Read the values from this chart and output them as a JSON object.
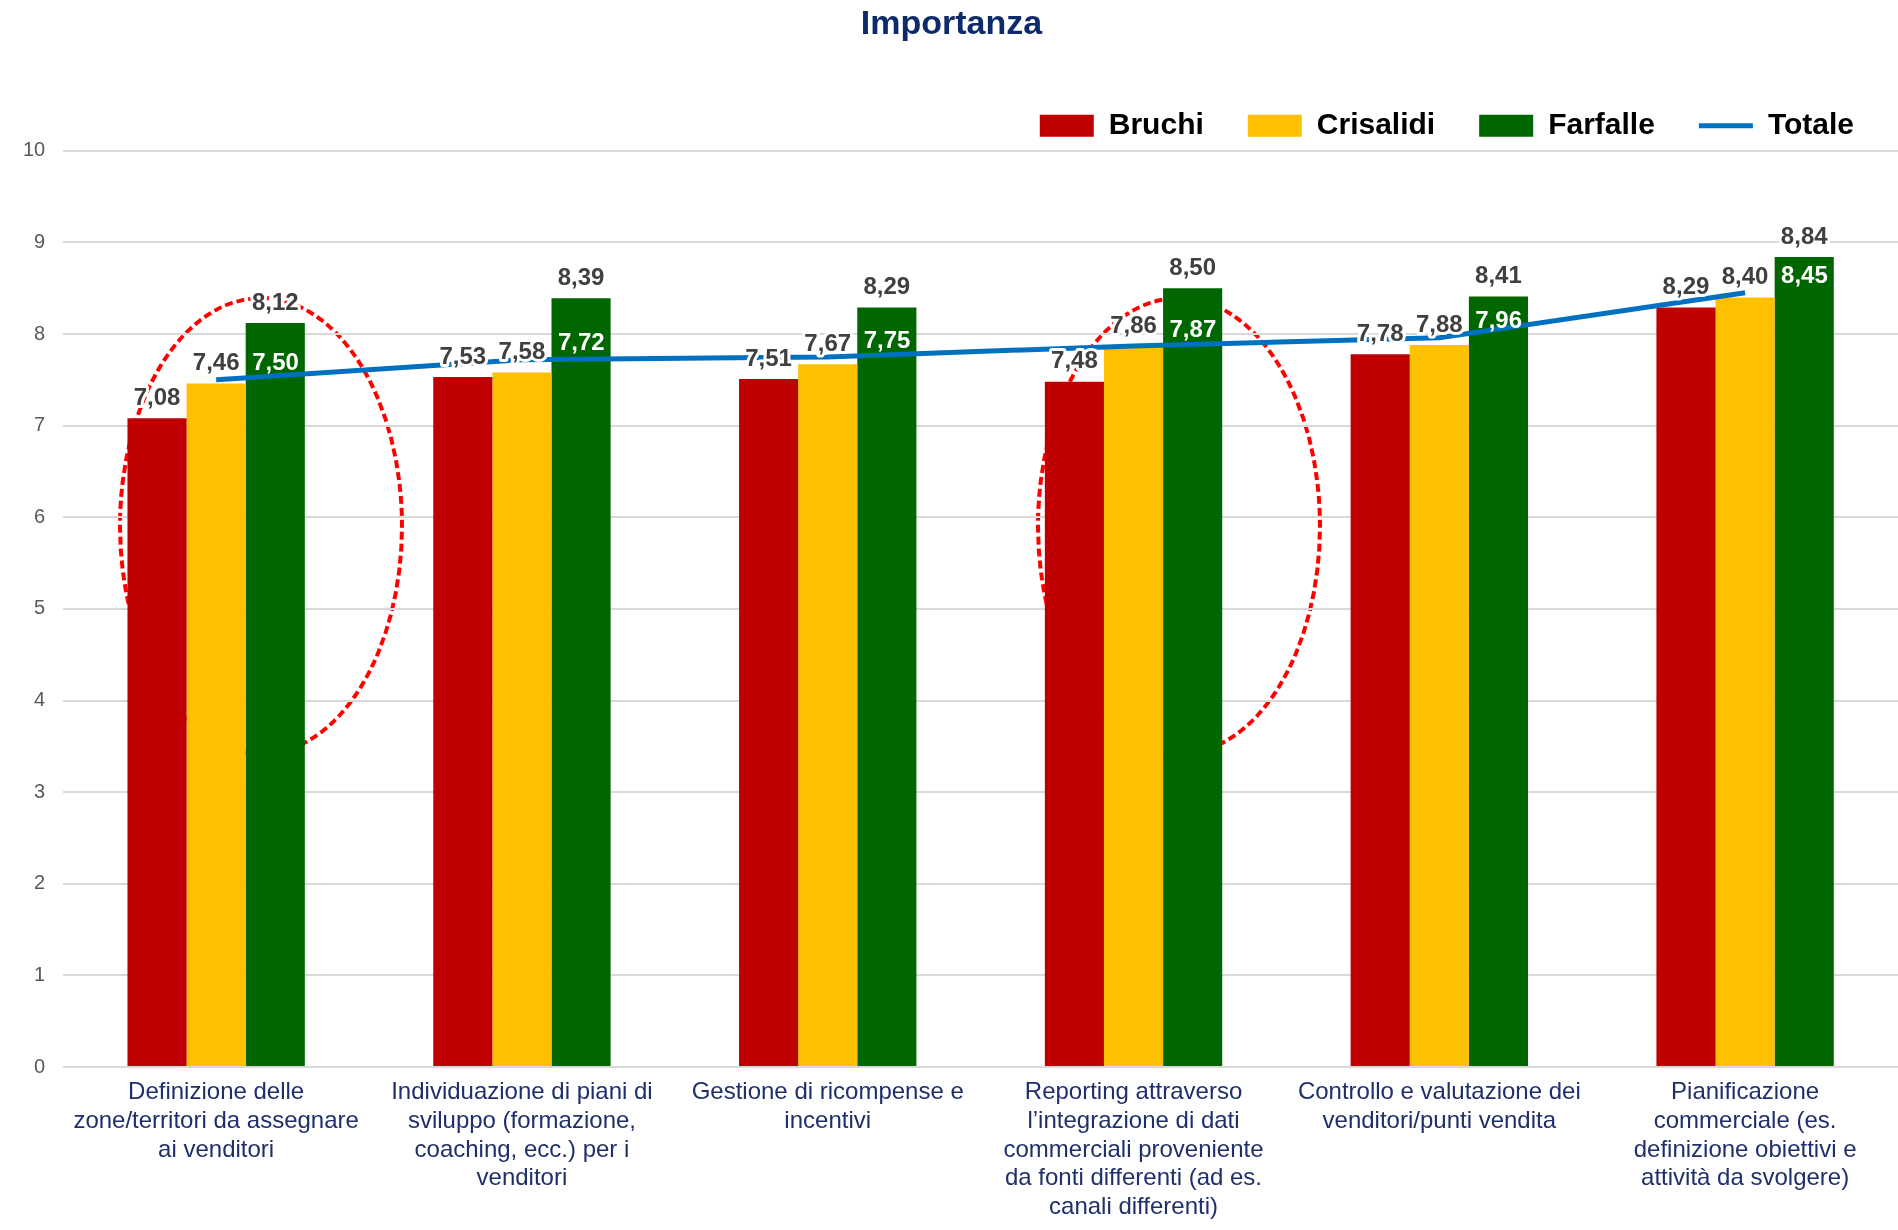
{
  "chart_data": {
    "type": "bar",
    "title": "Importanza",
    "categories": [
      "Definizione delle zone/territori da assegnare ai venditori",
      "Individuazione di piani di sviluppo (formazione, coaching, ecc.) per i venditori",
      "Gestione di ricompense e incentivi",
      "Reporting attraverso l’integrazione di dati commerciali proveniente da fonti differenti (ad es. canali differenti)",
      "Controllo e valutazione dei venditori/punti vendita",
      "Pianificazione commerciale (es. definizione obiettivi e attività da svolgere)"
    ],
    "series": [
      {
        "name": "Bruchi",
        "color": "#c00000",
        "values": [
          7.08,
          7.53,
          7.51,
          7.48,
          7.78,
          8.29
        ],
        "value_labels": [
          "7,08",
          "7,53",
          "7,51",
          "7,48",
          "7,78",
          "8,29"
        ]
      },
      {
        "name": "Crisalidi",
        "color": "#ffc000",
        "values": [
          7.46,
          7.58,
          7.67,
          7.86,
          7.88,
          8.4
        ],
        "value_labels": [
          "7,46",
          "7,58",
          "7,67",
          "7,86",
          "7,88",
          "8,40"
        ]
      },
      {
        "name": "Farfalle",
        "color": "#006600",
        "values": [
          8.12,
          8.39,
          8.29,
          8.5,
          8.41,
          8.84
        ],
        "value_labels": [
          "8,12",
          "8,39",
          "8,29",
          "8,50",
          "8,41",
          "8,84"
        ]
      },
      {
        "name": "Totale",
        "type": "line",
        "color": "#0070c0",
        "values": [
          7.5,
          7.72,
          7.75,
          7.87,
          7.96,
          8.45
        ],
        "value_labels": [
          "7,50",
          "7,72",
          "7,75",
          "7,87",
          "7,96",
          "8,45"
        ]
      }
    ],
    "ylim": [
      0,
      10
    ],
    "yticks": [
      0,
      1,
      2,
      3,
      4,
      5,
      6,
      7,
      8,
      9,
      10
    ],
    "grid": "y",
    "legend": "top right",
    "marker": "none"
  }
}
